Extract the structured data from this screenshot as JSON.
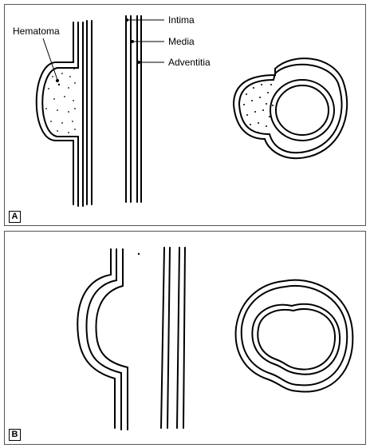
{
  "figure": {
    "panel_a": {
      "label": "A",
      "annotations": {
        "hematoma": "Hematoma",
        "intima": "Intima",
        "media": "Media",
        "adventitia": "Adventitia"
      }
    },
    "panel_b": {
      "label": "B"
    }
  },
  "colors": {
    "line": "#000000",
    "frame": "#555555",
    "background": "#ffffff"
  }
}
